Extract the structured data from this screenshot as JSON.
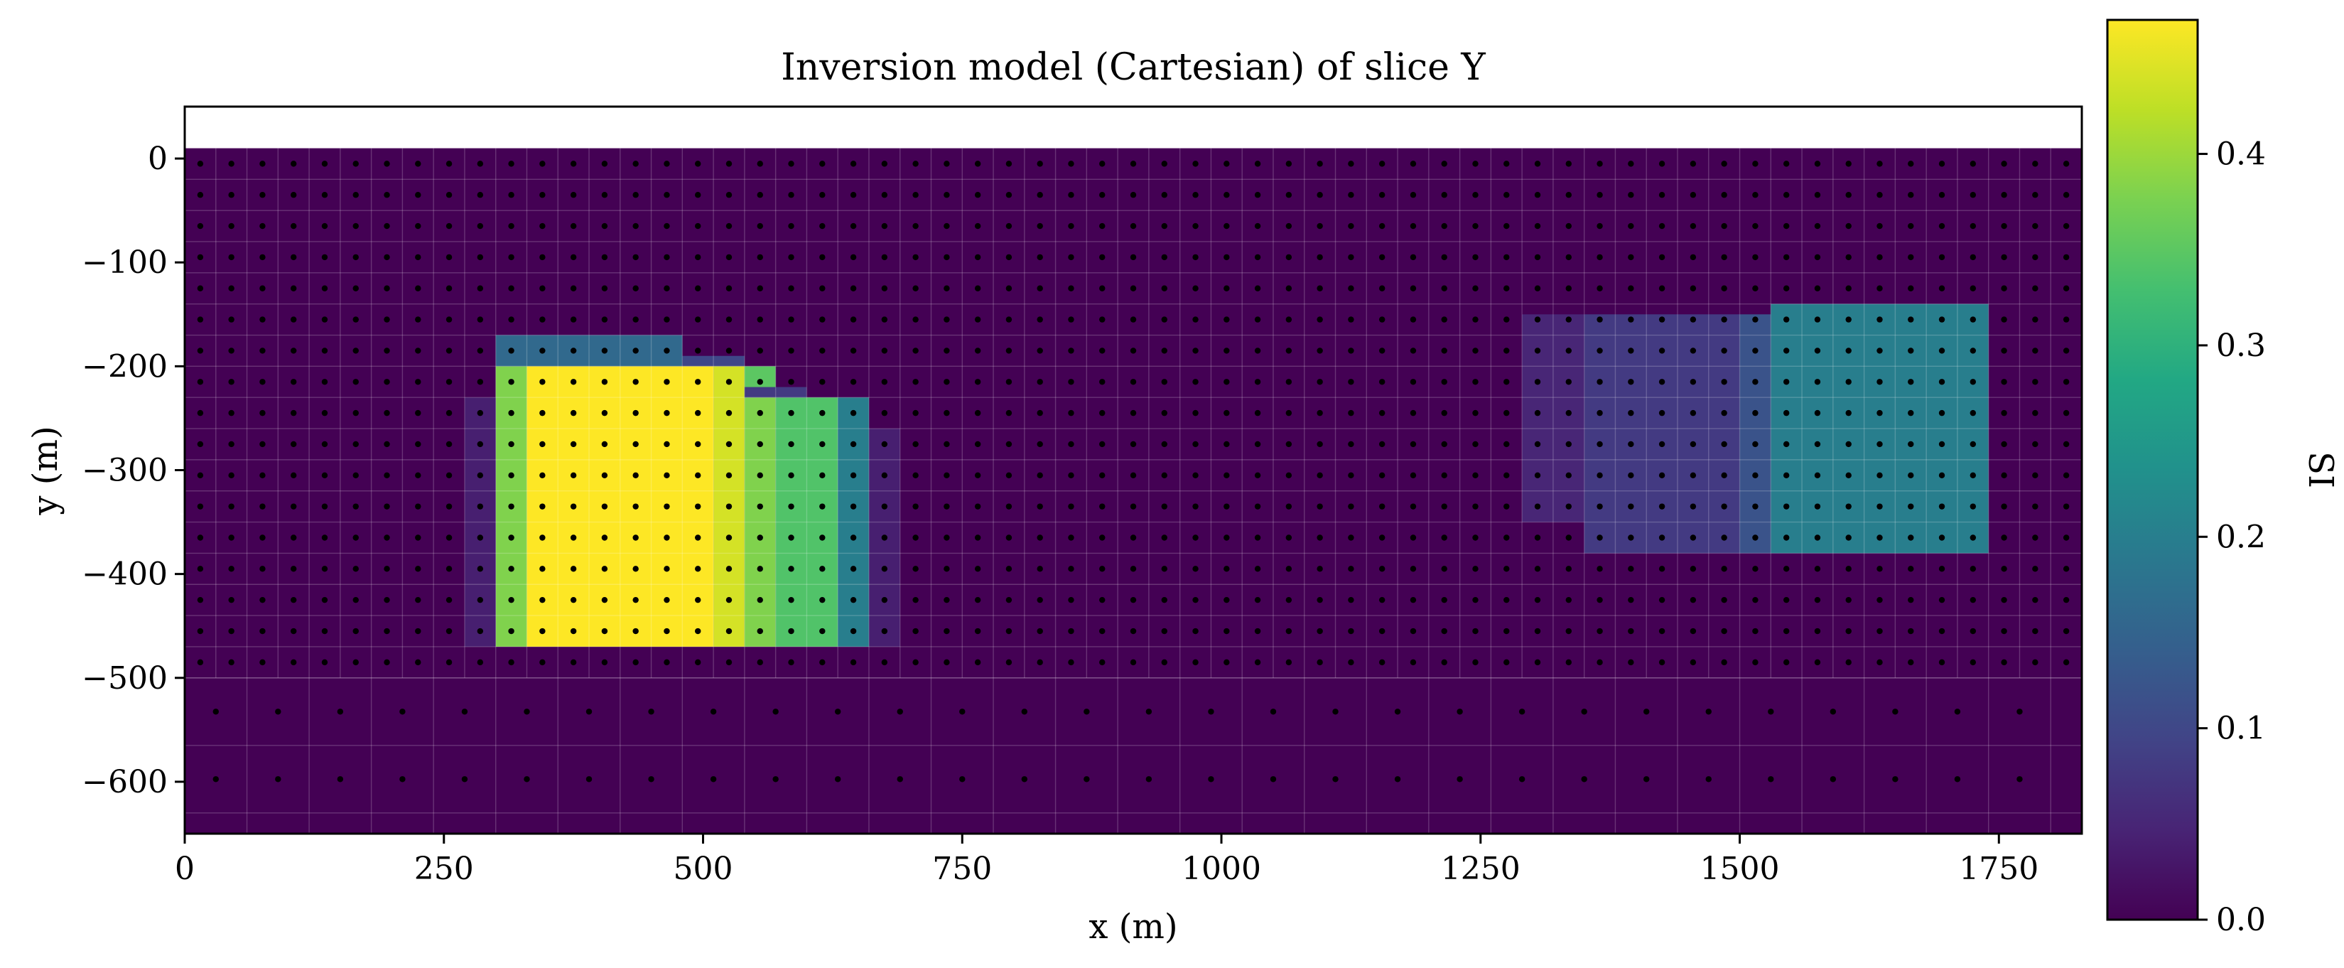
{
  "chart_data": {
    "type": "heatmap",
    "title": "Inversion model (Cartesian) of slice Y",
    "xlabel": "x (m)",
    "ylabel": "y (m)",
    "colorbar_label": "SI",
    "xlim": [
      0,
      1830
    ],
    "ylim": [
      -650,
      50
    ],
    "model_top": 10,
    "x_ticks": [
      0,
      250,
      500,
      750,
      1000,
      1250,
      1500,
      1750
    ],
    "x_tick_labels": [
      "0",
      "250",
      "500",
      "750",
      "1000",
      "1250",
      "1500",
      "1750"
    ],
    "y_ticks": [
      0,
      -100,
      -200,
      -300,
      -400,
      -500,
      -600
    ],
    "y_tick_labels": [
      "0",
      "−100",
      "−200",
      "−300",
      "−400",
      "−500",
      "−600"
    ],
    "colorbar_ticks": [
      0.0,
      0.1,
      0.2,
      0.3,
      0.4
    ],
    "colorbar_tick_labels": [
      "0.0",
      "0.1",
      "0.2",
      "0.3",
      "0.4"
    ],
    "colorbar_range": [
      0,
      0.47
    ],
    "colormap": "viridis",
    "background_value": 0.0,
    "fine_mesh": {
      "x_start": 0,
      "x_end": 1830,
      "x_step": 30,
      "y_top": 10,
      "y_bottom": -500,
      "y_step": 30
    },
    "coarse_mesh": {
      "x_start": 0,
      "x_end": 1830,
      "x_step": 60,
      "y_top": -500,
      "y_bottom": -650,
      "y_step": 65
    },
    "anomalies": [
      {
        "x": [
          300,
          480
        ],
        "y": [
          -200,
          -170
        ],
        "value": 0.16
      },
      {
        "x": [
          480,
          540
        ],
        "y": [
          -200,
          -190
        ],
        "value": 0.1
      },
      {
        "x": [
          300,
          330
        ],
        "y": [
          -470,
          -200
        ],
        "value": 0.38
      },
      {
        "x": [
          330,
          510
        ],
        "y": [
          -470,
          -200
        ],
        "value": 0.47
      },
      {
        "x": [
          510,
          540
        ],
        "y": [
          -470,
          -200
        ],
        "value": 0.44
      },
      {
        "x": [
          540,
          570
        ],
        "y": [
          -230,
          -200
        ],
        "value": 0.35
      },
      {
        "x": [
          540,
          570
        ],
        "y": [
          -470,
          -230
        ],
        "value": 0.38
      },
      {
        "x": [
          570,
          630
        ],
        "y": [
          -470,
          -230
        ],
        "value": 0.34
      },
      {
        "x": [
          630,
          660
        ],
        "y": [
          -470,
          -230
        ],
        "value": 0.2
      },
      {
        "x": [
          540,
          600
        ],
        "y": [
          -230,
          -220
        ],
        "value": 0.08
      },
      {
        "x": [
          270,
          300
        ],
        "y": [
          -470,
          -230
        ],
        "value": 0.04
      },
      {
        "x": [
          660,
          690
        ],
        "y": [
          -470,
          -260
        ],
        "value": 0.04
      },
      {
        "x": [
          1290,
          1350
        ],
        "y": [
          -350,
          -150
        ],
        "value": 0.05
      },
      {
        "x": [
          1350,
          1500
        ],
        "y": [
          -380,
          -150
        ],
        "value": 0.08
      },
      {
        "x": [
          1500,
          1530
        ],
        "y": [
          -380,
          -150
        ],
        "value": 0.12
      },
      {
        "x": [
          1530,
          1740
        ],
        "y": [
          -380,
          -140
        ],
        "value": 0.2
      }
    ]
  }
}
